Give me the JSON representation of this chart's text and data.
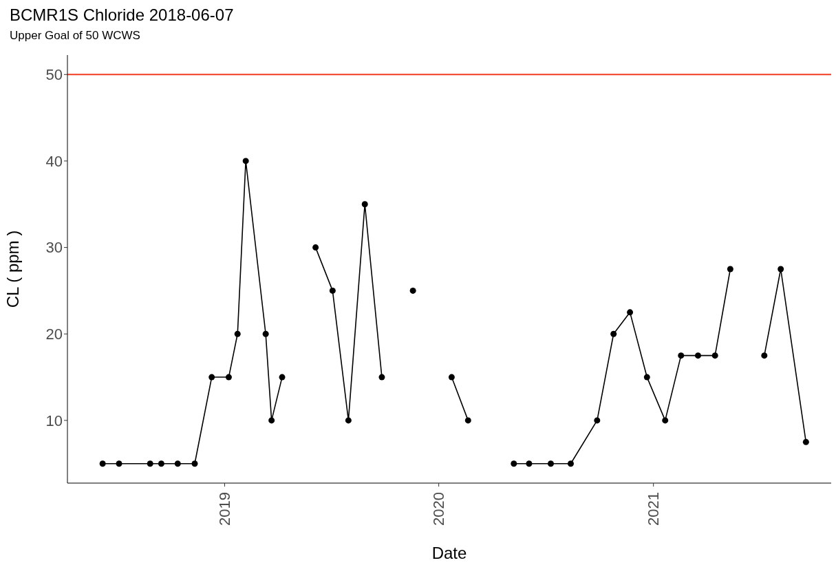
{
  "chart_data": {
    "type": "line",
    "title": "BCMR1S Chloride 2018-06-07",
    "subtitle": "Upper Goal of 50 WCWS",
    "xlabel": "Date",
    "ylabel": "CL ( ppm )",
    "x": [
      "2018-06-07",
      "2018-07-05",
      "2018-08-27",
      "2018-09-15",
      "2018-10-13",
      "2018-11-11",
      "2018-12-10",
      "2019-01-08",
      "2019-01-23",
      "2019-02-06",
      "2019-03-12",
      "2019-03-22",
      "2019-04-09",
      "2019-05-07",
      "2019-06-05",
      "2019-07-04",
      "2019-07-31",
      "2019-08-28",
      "2019-09-26",
      "2019-10-22",
      "2019-11-18",
      "2019-12-20",
      "2020-01-23",
      "2020-02-20",
      "2020-04-01",
      "2020-05-08",
      "2020-06-03",
      "2020-07-10",
      "2020-08-13",
      "2020-09-27",
      "2020-10-25",
      "2020-11-22",
      "2020-12-21",
      "2021-01-21",
      "2021-02-17",
      "2021-03-18",
      "2021-04-16",
      "2021-05-12",
      "2021-06-10",
      "2021-07-09",
      "2021-08-06",
      "2021-09-18"
    ],
    "series": [
      {
        "color": "#000000",
        "values": [
          5,
          5,
          5,
          5,
          5,
          5,
          15,
          15,
          20,
          40,
          20,
          10,
          15,
          null,
          30,
          25,
          10,
          35,
          15,
          null,
          25,
          null,
          15,
          10,
          null,
          5,
          5,
          5,
          5,
          10,
          20,
          22.5,
          15,
          10,
          17.5,
          17.5,
          17.5,
          27.5,
          null,
          17.5,
          27.5,
          7.5
        ]
      }
    ],
    "xlim": [
      "2018-04-08",
      "2021-10-31"
    ],
    "xticks": [
      "2019",
      "2020",
      "2021"
    ],
    "ylim": [
      2.75,
      52.25
    ],
    "yticks": [
      10,
      20,
      30,
      40,
      50
    ],
    "ref_lines": [
      {
        "axis": "y",
        "value": 50,
        "color": "#f03b20"
      }
    ],
    "grid": false,
    "legend": false,
    "marker": "circle",
    "line_style": "solid"
  }
}
